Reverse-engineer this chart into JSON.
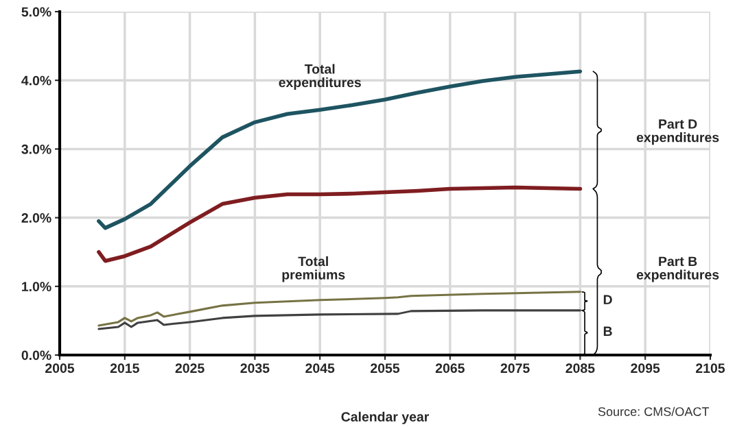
{
  "chart_data": {
    "type": "line",
    "xlabel": "Calendar year",
    "xlim": [
      2005,
      2105
    ],
    "xticks": [
      2005,
      2015,
      2025,
      2035,
      2045,
      2055,
      2065,
      2075,
      2085,
      2095,
      2105
    ],
    "ylim": [
      0,
      5
    ],
    "yticks": [
      {
        "value": 0,
        "label": "0.0%"
      },
      {
        "value": 1,
        "label": "1.0%"
      },
      {
        "value": 2,
        "label": "2.0%"
      },
      {
        "value": 3,
        "label": "3.0%"
      },
      {
        "value": 4,
        "label": "4.0%"
      },
      {
        "value": 5,
        "label": "5.0%"
      }
    ],
    "grid": true,
    "legend": false,
    "series": [
      {
        "color": "#1e5461",
        "x": [
          2011,
          2012,
          2015,
          2019,
          2025,
          2030,
          2035,
          2040,
          2045,
          2050,
          2055,
          2060,
          2065,
          2070,
          2075,
          2080,
          2085
        ],
        "values": [
          1.95,
          1.85,
          1.98,
          2.2,
          2.75,
          3.17,
          3.39,
          3.51,
          3.57,
          3.64,
          3.72,
          3.82,
          3.91,
          3.99,
          4.05,
          4.09,
          4.13
        ]
      },
      {
        "color": "#7f1d20",
        "x": [
          2011,
          2012,
          2015,
          2019,
          2025,
          2030,
          2035,
          2040,
          2045,
          2050,
          2055,
          2060,
          2065,
          2070,
          2075,
          2085
        ],
        "values": [
          1.5,
          1.37,
          1.44,
          1.58,
          1.93,
          2.2,
          2.29,
          2.34,
          2.34,
          2.35,
          2.37,
          2.39,
          2.42,
          2.43,
          2.44,
          2.42
        ]
      },
      {
        "color": "#767244",
        "x": [
          2011,
          2014,
          2015,
          2016,
          2017,
          2019,
          2020,
          2021,
          2025,
          2030,
          2035,
          2045,
          2055,
          2057,
          2059,
          2070,
          2085
        ],
        "values": [
          0.43,
          0.48,
          0.54,
          0.49,
          0.54,
          0.58,
          0.62,
          0.56,
          0.63,
          0.72,
          0.76,
          0.8,
          0.83,
          0.84,
          0.86,
          0.89,
          0.92
        ]
      },
      {
        "color": "#404040",
        "x": [
          2011,
          2014,
          2015,
          2016,
          2017,
          2020,
          2021,
          2025,
          2030,
          2035,
          2045,
          2057,
          2059,
          2070,
          2085
        ],
        "values": [
          0.38,
          0.41,
          0.47,
          0.41,
          0.47,
          0.51,
          0.44,
          0.48,
          0.54,
          0.57,
          0.59,
          0.6,
          0.64,
          0.65,
          0.65
        ]
      }
    ],
    "annotations": [
      "Total\nexpenditures",
      "Total\npremiums",
      "Part D\nexpenditures",
      "Part B\nexpenditures",
      "D",
      "B",
      "Source: CMS/OACT"
    ]
  }
}
